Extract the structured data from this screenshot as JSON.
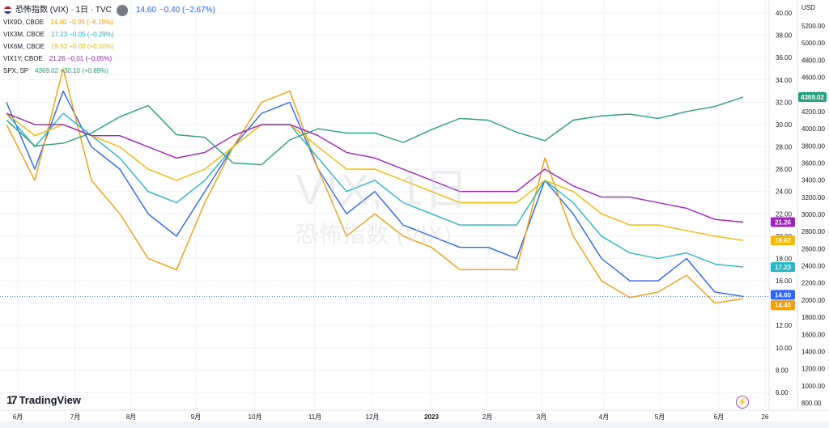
{
  "header": {
    "title": "恐怖指数 (VIX) · 1日 · TVC",
    "main_value": "14.60",
    "main_change": "−0.40 (−2.67%)"
  },
  "legend": [
    {
      "name": "VIX9D, CBOE",
      "vals": "14.40  −0.95 (−6.19%)",
      "color": "#f59e0b"
    },
    {
      "name": "VIX3M, CBOE",
      "vals": "17.23  −0.05 (−0.29%)",
      "color": "#22b8c8"
    },
    {
      "name": "VIX6M, CBOE",
      "vals": "19.62  +0.02 (+0.10%)",
      "color": "#f5b700"
    },
    {
      "name": "VIX1Y, CBOE",
      "vals": "21.26  −0.01 (−0.05%)",
      "color": "#a020c0"
    },
    {
      "name": "SPX, SP",
      "vals": "4369.02  +30.10 (+0.69%)",
      "color": "#26a17b"
    }
  ],
  "currency": "USD",
  "brand": "TradingView",
  "watermark": {
    "ticker": "VIX, 1日",
    "name": "恐怖指数 (VIX)"
  },
  "chart_data": {
    "type": "line",
    "left_axis": {
      "label": "VIX",
      "ylim": [
        5,
        41
      ],
      "ticks": [
        6,
        8,
        10,
        12,
        14,
        16,
        18,
        20,
        22,
        24,
        26,
        28,
        30,
        32,
        34,
        36,
        38,
        40
      ]
    },
    "right_axis": {
      "label": "USD",
      "ylim": [
        700,
        5500
      ],
      "ticks": [
        800,
        1000,
        1200,
        1400,
        1600,
        1800,
        2000,
        2200,
        2400,
        2600,
        2800,
        3000,
        3200,
        3400,
        3600,
        3800,
        4000,
        4200,
        4400,
        4600,
        4800,
        5000,
        5200
      ]
    },
    "x_tick_labels": [
      "6月",
      "7月",
      "8月",
      "9月",
      "10月",
      "11月",
      "12月",
      "2023",
      "2月",
      "3月",
      "4月",
      "5月",
      "6月",
      "26"
    ],
    "x": [
      "2022-06-01",
      "2022-06-16",
      "2022-07-01",
      "2022-07-15",
      "2022-08-01",
      "2022-08-18",
      "2022-09-01",
      "2022-09-15",
      "2022-10-01",
      "2022-10-13",
      "2022-11-01",
      "2022-11-15",
      "2022-12-01",
      "2022-12-15",
      "2023-01-03",
      "2023-01-17",
      "2023-02-01",
      "2023-02-15",
      "2023-03-01",
      "2023-03-13",
      "2023-04-01",
      "2023-04-15",
      "2023-05-01",
      "2023-05-15",
      "2023-06-01",
      "2023-06-15",
      "2023-06-23"
    ],
    "series": [
      {
        "name": "VIX",
        "axis": "left",
        "color": "#2962ff",
        "last": 14.6,
        "values": [
          32,
          26,
          33,
          28,
          26,
          22,
          20,
          24,
          28,
          31,
          32,
          26,
          22,
          24,
          21,
          20,
          19,
          19,
          18,
          25,
          22,
          18,
          16,
          16,
          18,
          15,
          14.6
        ]
      },
      {
        "name": "VIX9D",
        "axis": "left",
        "color": "#f59e0b",
        "last": 14.4,
        "values": [
          30,
          25,
          35,
          25,
          22,
          18,
          17,
          23,
          28,
          32,
          33,
          26,
          20,
          22,
          20,
          19,
          17,
          17,
          17,
          27,
          20,
          16,
          14.5,
          15,
          16.5,
          14,
          14.4
        ]
      },
      {
        "name": "VIX3M",
        "axis": "left",
        "color": "#22b8c8",
        "last": 17.23,
        "values": [
          31,
          28,
          31,
          29,
          27,
          24,
          23,
          25,
          28,
          30,
          30,
          27,
          24,
          25,
          23,
          22,
          21,
          21,
          21,
          25,
          23,
          20,
          18.5,
          18,
          18.5,
          17.5,
          17.23
        ]
      },
      {
        "name": "VIX6M",
        "axis": "left",
        "color": "#f5b700",
        "last": 19.62,
        "values": [
          31,
          29,
          30,
          29,
          28,
          26,
          25,
          26,
          28,
          30,
          30,
          28,
          26,
          26,
          25,
          24,
          23,
          23,
          23,
          25,
          24,
          22,
          21,
          21,
          20.5,
          20,
          19.62
        ]
      },
      {
        "name": "VIX1Y",
        "axis": "left",
        "color": "#a020c0",
        "last": 21.26,
        "values": [
          31,
          30,
          30,
          29,
          29,
          28,
          27,
          27.5,
          29,
          30,
          30,
          29,
          27.5,
          27,
          26,
          25,
          24,
          24,
          24,
          26,
          24.5,
          23.5,
          23.5,
          23,
          22.5,
          21.5,
          21.26
        ]
      },
      {
        "name": "SPX",
        "axis": "right",
        "color": "#26a17b",
        "last": 4369.02,
        "values": [
          4100,
          3800,
          3830,
          3950,
          4140,
          4270,
          3930,
          3900,
          3600,
          3580,
          3870,
          4000,
          3950,
          3950,
          3840,
          3990,
          4120,
          4100,
          3960,
          3860,
          4100,
          4150,
          4170,
          4120,
          4200,
          4260,
          4369.02
        ]
      }
    ],
    "price_tags": [
      {
        "label": "4369.02",
        "color": "#26a17b"
      },
      {
        "label": "21.26",
        "color": "#a020c0"
      },
      {
        "label": "19.62",
        "color": "#f5b700"
      },
      {
        "label": "17.23",
        "color": "#22b8c8"
      },
      {
        "label": "14.60",
        "color": "#2962ff"
      },
      {
        "label": "14.40",
        "color": "#f59e0b"
      }
    ],
    "grid": true
  }
}
